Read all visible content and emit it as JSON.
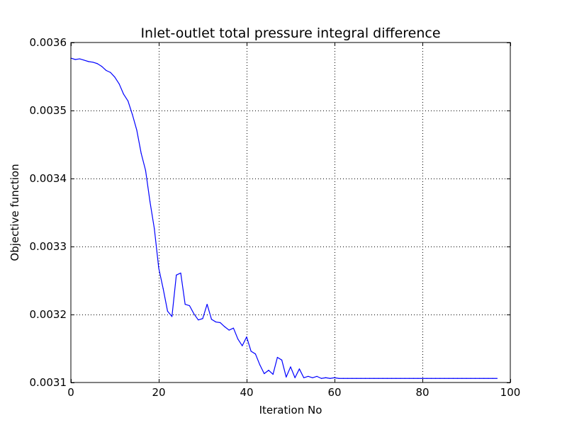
{
  "chart_data": {
    "type": "line",
    "title": "Inlet-outlet total pressure integral difference",
    "xlabel": "Iteration No",
    "ylabel": "Objective function",
    "xlim": [
      0,
      100
    ],
    "ylim": [
      0.0031,
      0.0036
    ],
    "x_ticks": [
      0,
      20,
      40,
      60,
      80,
      100
    ],
    "x_tick_labels": [
      "0",
      "20",
      "40",
      "60",
      "80",
      "100"
    ],
    "y_ticks": [
      0.0031,
      0.0032,
      0.0033,
      0.0034,
      0.0035,
      0.0036
    ],
    "y_tick_labels": [
      "0.0031",
      "0.0032",
      "0.0033",
      "0.0034",
      "0.0035",
      "0.0036"
    ],
    "grid": true,
    "series": [
      {
        "color": "#0000ff",
        "x": [
          0,
          1,
          2,
          3,
          4,
          5,
          6,
          7,
          8,
          9,
          10,
          11,
          12,
          13,
          14,
          15,
          16,
          17,
          18,
          19,
          20,
          21,
          22,
          23,
          24,
          25,
          26,
          27,
          28,
          29,
          30,
          31,
          32,
          33,
          34,
          35,
          36,
          37,
          38,
          39,
          40,
          41,
          42,
          43,
          44,
          45,
          46,
          47,
          48,
          49,
          50,
          51,
          52,
          53,
          54,
          55,
          56,
          57,
          58,
          59,
          60,
          61,
          62,
          63,
          64,
          65,
          66,
          67,
          68,
          69,
          70,
          71,
          72,
          73,
          74,
          75,
          76,
          77,
          78,
          79,
          80,
          81,
          82,
          83,
          84,
          85,
          86,
          87,
          88,
          89,
          90,
          91,
          92,
          93,
          94,
          95,
          96,
          97
        ],
        "y": [
          0.003577,
          0.003575,
          0.003576,
          0.003574,
          0.003572,
          0.003571,
          0.003569,
          0.003565,
          0.003559,
          0.003556,
          0.003549,
          0.003539,
          0.003524,
          0.003514,
          0.003494,
          0.003471,
          0.003437,
          0.003412,
          0.003366,
          0.003326,
          0.003268,
          0.003238,
          0.003205,
          0.003197,
          0.003258,
          0.003261,
          0.003215,
          0.003213,
          0.003201,
          0.003192,
          0.003194,
          0.003215,
          0.003193,
          0.003189,
          0.003188,
          0.003182,
          0.003177,
          0.00318,
          0.003164,
          0.003154,
          0.003167,
          0.003146,
          0.003142,
          0.003126,
          0.003113,
          0.003118,
          0.003112,
          0.003137,
          0.003133,
          0.003108,
          0.003123,
          0.003107,
          0.00312,
          0.003107,
          0.003109,
          0.003107,
          0.003109,
          0.003106,
          0.003107,
          0.003106,
          0.003107,
          0.003106,
          0.003106,
          0.003106,
          0.003106,
          0.003106,
          0.003106,
          0.003106,
          0.003106,
          0.003106,
          0.003106,
          0.003106,
          0.003106,
          0.003106,
          0.003106,
          0.003106,
          0.003106,
          0.003106,
          0.003106,
          0.003106,
          0.003106,
          0.003106,
          0.003106,
          0.003106,
          0.003106,
          0.003106,
          0.003106,
          0.003106,
          0.003106,
          0.003106,
          0.003106,
          0.003106,
          0.003106,
          0.003106,
          0.003106,
          0.003106,
          0.003106,
          0.003106
        ]
      }
    ]
  }
}
